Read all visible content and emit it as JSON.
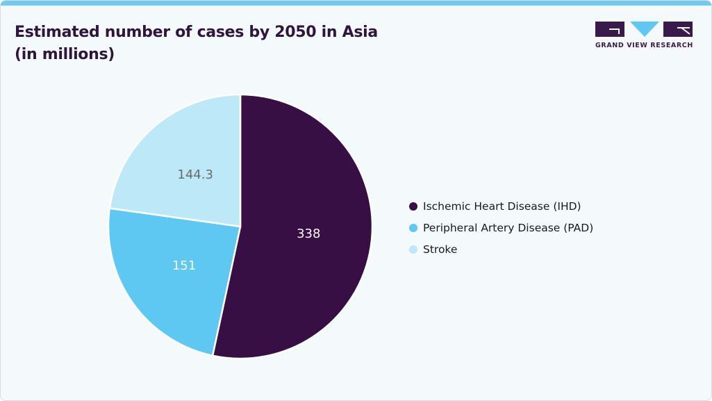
{
  "header": {
    "title_line1": "Estimated number of cases by 2050 in Asia",
    "title_line2": "(in millions)",
    "logo_text": "GRAND VIEW RESEARCH"
  },
  "colors": {
    "accent_bar": "#72c9ef",
    "title": "#2f1440",
    "ihd": "#370f45",
    "pad": "#5ec8f2",
    "stroke": "#bde8f8"
  },
  "chart_data": {
    "type": "pie",
    "title": "Estimated number of cases by 2050 in Asia (in millions)",
    "categories": [
      "Ischemic Heart Disease (IHD)",
      "Peripheral Artery Disease (PAD)",
      "Stroke"
    ],
    "values": [
      338,
      151,
      144.3
    ],
    "value_labels": [
      "338",
      "151",
      "144.3"
    ],
    "colors": [
      "#370f45",
      "#5ec8f2",
      "#bde8f8"
    ],
    "label_colors": [
      "#ffffff",
      "#ffffff",
      "#6b6b6b"
    ],
    "start_angle": "top, clockwise",
    "legend_position": "right"
  }
}
